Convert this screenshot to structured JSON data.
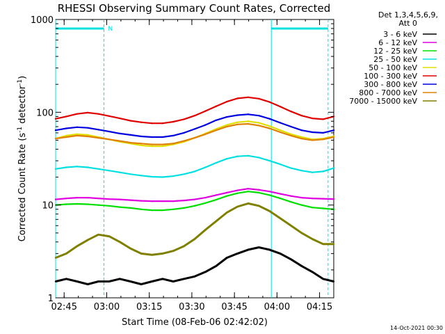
{
  "chart_data": {
    "type": "line",
    "title": "RHESSI Observing Summary Count Rates, Corrected",
    "xlabel": "Start Time (08-Feb-06 02:42:02)",
    "ylabel_main": "Corrected Count Rate (s",
    "ylabel_sup1": "-1",
    "ylabel_mid": " detector",
    "ylabel_sup2": "-1",
    "ylabel_end": ")",
    "y_scale": "log",
    "ylim": [
      1,
      1000
    ],
    "y_ticks": [
      {
        "value": 1,
        "label": "1"
      },
      {
        "value": 10,
        "label": "10"
      },
      {
        "value": 100,
        "label": "100"
      },
      {
        "value": 1000,
        "label": "1000"
      }
    ],
    "xlim_minutes": [
      0,
      98
    ],
    "x_ticks": [
      {
        "minutes": 3,
        "label": "02:45"
      },
      {
        "minutes": 18,
        "label": "03:00"
      },
      {
        "minutes": 33,
        "label": "03:15"
      },
      {
        "minutes": 48,
        "label": "03:30"
      },
      {
        "minutes": 63,
        "label": "03:45"
      },
      {
        "minutes": 78,
        "label": "04:00"
      },
      {
        "minutes": 93,
        "label": "04:15"
      }
    ],
    "legend": {
      "placement": "right",
      "header1": "Det 1,3,4,5,6,9,",
      "header2": "Att 0"
    },
    "night_bars": [
      [
        0,
        17
      ],
      [
        76,
        96
      ]
    ],
    "night_marker": "N",
    "night_boundaries_minutes": [
      0,
      17,
      76,
      96
    ],
    "series": [
      {
        "name": "3 - 6 keV",
        "color": "#000000",
        "values": [
          1.5,
          1.6,
          1.5,
          1.4,
          1.5,
          1.5,
          1.6,
          1.5,
          1.4,
          1.5,
          1.6,
          1.5,
          1.6,
          1.7,
          1.9,
          2.2,
          2.7,
          3.0,
          3.3,
          3.5,
          3.3,
          3.0,
          2.6,
          2.2,
          1.9,
          1.6,
          1.5
        ]
      },
      {
        "name": "6 - 12 keV",
        "color": "#e000e0",
        "values": [
          11.5,
          11.8,
          12.0,
          12.0,
          11.8,
          11.6,
          11.5,
          11.3,
          11.1,
          11.0,
          11.0,
          11.0,
          11.2,
          11.5,
          12.0,
          12.8,
          13.6,
          14.4,
          15.0,
          14.6,
          14.0,
          13.2,
          12.5,
          12.0,
          11.8,
          11.7,
          11.6
        ]
      },
      {
        "name": "12 - 25 keV",
        "color": "#00e000",
        "values": [
          10.0,
          10.2,
          10.3,
          10.2,
          10.0,
          9.8,
          9.5,
          9.3,
          9.0,
          8.8,
          8.8,
          9.0,
          9.3,
          9.8,
          10.5,
          11.4,
          12.5,
          13.4,
          14.0,
          13.6,
          12.8,
          11.8,
          10.8,
          10.0,
          9.4,
          9.2,
          9.0
        ]
      },
      {
        "name": "25 - 50 keV",
        "color": "#00e0e0",
        "values": [
          24.5,
          25.5,
          26.0,
          25.5,
          24.5,
          23.5,
          22.5,
          21.5,
          20.8,
          20.2,
          20.0,
          20.5,
          21.5,
          23.0,
          25.5,
          28.5,
          31.5,
          33.5,
          34.0,
          32.5,
          30.0,
          27.5,
          25.0,
          23.5,
          22.5,
          23.0,
          25.0
        ]
      },
      {
        "name": "50 - 100 keV",
        "color": "#e0e000",
        "values": [
          52,
          56,
          58,
          57,
          54,
          51,
          48,
          46,
          44,
          43,
          43,
          45,
          48,
          53,
          59,
          66,
          73,
          78,
          80,
          77,
          71,
          64,
          58,
          54,
          51,
          52,
          55
        ]
      },
      {
        "name": "100 - 300 keV",
        "color": "#e00000",
        "values": [
          85,
          90,
          96,
          99,
          96,
          91,
          86,
          81,
          78,
          76,
          76,
          79,
          84,
          92,
          103,
          116,
          130,
          141,
          145,
          140,
          129,
          115,
          102,
          92,
          86,
          84,
          90
        ]
      },
      {
        "name": "300 - 800 keV",
        "color": "#0000e0",
        "values": [
          64,
          67,
          69,
          68,
          65,
          62,
          59,
          57,
          55,
          54,
          54,
          56,
          60,
          66,
          73,
          82,
          89,
          93,
          95,
          92,
          85,
          77,
          70,
          64,
          61,
          60,
          64
        ]
      },
      {
        "name": "800 - 7000 keV",
        "color": "#e08000",
        "values": [
          52,
          54,
          56,
          55,
          53,
          51,
          49,
          47,
          46,
          45,
          45,
          46,
          49,
          53,
          58,
          64,
          70,
          74,
          75,
          72,
          67,
          61,
          56,
          52,
          50,
          51,
          54
        ]
      },
      {
        "name": "7000 - 15000 keV",
        "color": "#808000",
        "values": [
          2.7,
          3.0,
          3.6,
          4.2,
          4.8,
          4.6,
          4.0,
          3.4,
          3.0,
          2.9,
          3.0,
          3.2,
          3.6,
          4.3,
          5.4,
          6.7,
          8.3,
          9.6,
          10.4,
          9.8,
          8.6,
          7.2,
          6.0,
          5.0,
          4.3,
          3.8,
          3.8
        ]
      }
    ],
    "footer_date": "14-Oct-2021 00:30"
  }
}
